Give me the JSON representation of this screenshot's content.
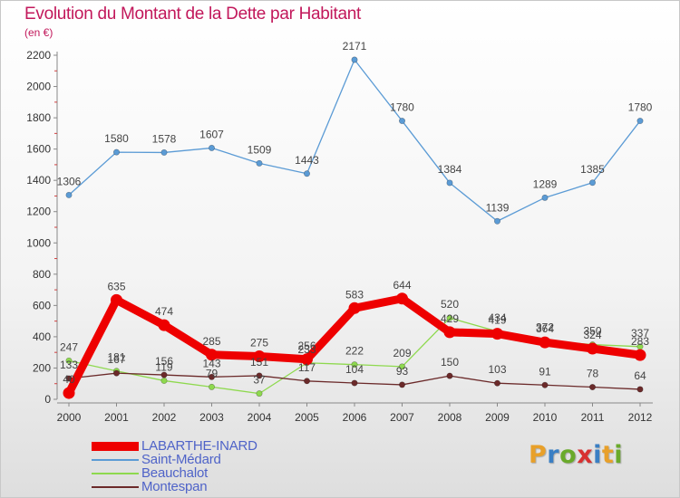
{
  "header": {
    "title": "Evolution du Montant de la Dette par Habitant",
    "unit": "(en €)"
  },
  "logo": {
    "text": "Proxiti",
    "letters": [
      {
        "ch": "P",
        "color": "#e8a02a"
      },
      {
        "ch": "r",
        "color": "#3a7fc4"
      },
      {
        "ch": "o",
        "color": "#6aaa2a"
      },
      {
        "ch": "x",
        "color": "#d83030"
      },
      {
        "ch": "i",
        "color": "#3a7fc4"
      },
      {
        "ch": "t",
        "color": "#e8a02a"
      },
      {
        "ch": "i",
        "color": "#6aaa2a"
      }
    ]
  },
  "chart_data": {
    "type": "line",
    "title": "Evolution du Montant de la Dette par Habitant",
    "ylabel": "(en €)",
    "x": [
      2000,
      2001,
      2002,
      2003,
      2004,
      2005,
      2006,
      2007,
      2008,
      2009,
      2010,
      2011,
      2012
    ],
    "ylim": [
      0,
      2200
    ],
    "yticks": [
      0,
      200,
      400,
      600,
      800,
      1000,
      1200,
      1400,
      1600,
      1800,
      2000,
      2200
    ],
    "grid": false,
    "legend_position": "bottom-left",
    "series": [
      {
        "name": "LABARTHE-INARD",
        "color": "#ee0000",
        "line_width": "thick",
        "values": [
          40,
          635,
          474,
          285,
          275,
          256,
          583,
          644,
          429,
          419,
          364,
          324,
          283
        ],
        "labels": [
          "40",
          "635",
          "474",
          "285",
          "275",
          "256",
          "583",
          "644",
          "429",
          "419",
          "364",
          "324",
          "283"
        ]
      },
      {
        "name": "Saint-Médard",
        "color": "#5b9bd5",
        "line_width": "thin",
        "values": [
          1306,
          1580,
          1578,
          1607,
          1509,
          1443,
          2171,
          1780,
          1384,
          1139,
          1289,
          1385,
          1780
        ],
        "labels": [
          "1306",
          "1580",
          "1578",
          "1607",
          "1509",
          "1443",
          "2171",
          "1780",
          "1384",
          "1139",
          "1289",
          "1385",
          "1780"
        ]
      },
      {
        "name": "Beauchalot",
        "color": "#8ed94e",
        "line_width": "thin",
        "values": [
          247,
          181,
          119,
          79,
          37,
          233,
          222,
          209,
          520,
          434,
          372,
          350,
          337
        ],
        "labels": [
          "247",
          "181",
          "119",
          "79",
          "37",
          "233",
          "222",
          "209",
          "520",
          "434",
          "372",
          "350",
          "337"
        ]
      },
      {
        "name": "Montespan",
        "color": "#6b2a2a",
        "line_width": "thin",
        "values": [
          133,
          167,
          156,
          143,
          151,
          117,
          104,
          93,
          150,
          103,
          91,
          78,
          64
        ],
        "labels": [
          "133",
          "167",
          "156",
          "143",
          "151",
          "117",
          "104",
          "93",
          "150",
          "103",
          "91",
          "78",
          "64"
        ]
      }
    ]
  }
}
